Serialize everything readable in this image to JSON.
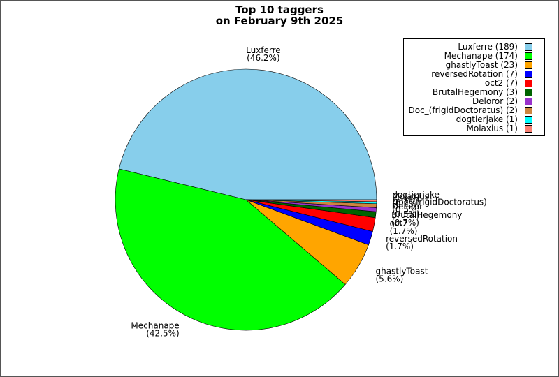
{
  "chart_data": {
    "type": "pie",
    "title": [
      "Top 10 taggers",
      "on February 9th 2025"
    ],
    "legend_position": "top-right",
    "slices": [
      {
        "name": "Luxferre",
        "value": 189,
        "percent": "(46.2%)",
        "legend": "Luxferre (189)",
        "color": "#87ceeb"
      },
      {
        "name": "Mechanape",
        "value": 174,
        "percent": "(42.5%)",
        "legend": "Mechanape (174)",
        "color": "#00ff00"
      },
      {
        "name": "ghastlyToast",
        "value": 23,
        "percent": "(5.6%)",
        "legend": "ghastlyToast (23)",
        "color": "#ffa500"
      },
      {
        "name": "reversedRotation",
        "value": 7,
        "percent": "(1.7%)",
        "legend": "reversedRotation (7)",
        "color": "#0000ff"
      },
      {
        "name": "oct2",
        "value": 7,
        "percent": "(1.7%)",
        "legend": "oct2 (7)",
        "color": "#ff0000"
      },
      {
        "name": "BrutalHegemony",
        "value": 3,
        "percent": "(0.7%)",
        "legend": "BrutalHegemony (3)",
        "color": "#006400"
      },
      {
        "name": "Deloror",
        "value": 2,
        "percent": "(0.5%)",
        "legend": "Deloror (2)",
        "color": "#9932cc"
      },
      {
        "name": "Doc_(frigidDoctoratus)",
        "value": 2,
        "percent": "(0.5%)",
        "legend": "Doc_(frigidDoctoratus) (2)",
        "color": "#cd853f"
      },
      {
        "name": "dogtierjake",
        "value": 1,
        "percent": "(0.2%)",
        "legend": "dogtierjake (1)",
        "color": "#00ffff"
      },
      {
        "name": "Molaxius",
        "value": 1,
        "percent": "(0.2%)",
        "legend": "Molaxius (1)",
        "color": "#fa8072"
      }
    ]
  }
}
